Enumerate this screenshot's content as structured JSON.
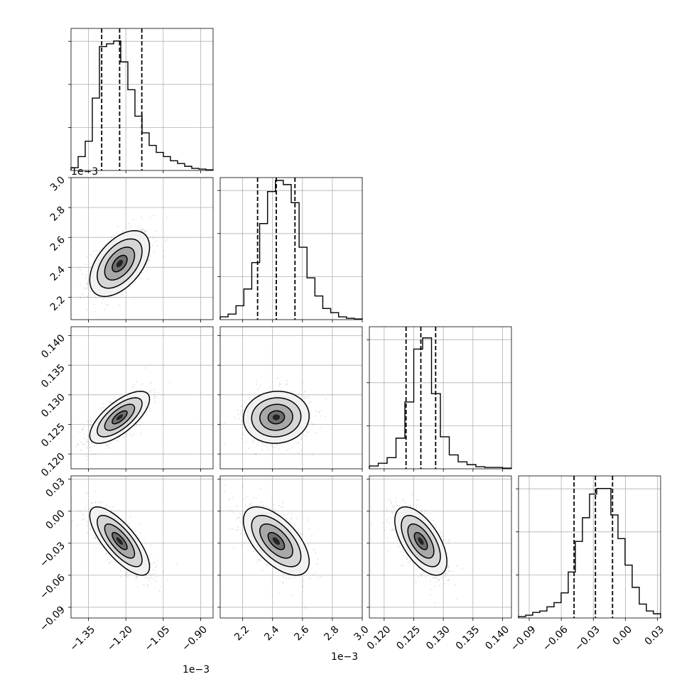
{
  "chart_data": {
    "type": "corner",
    "n_params": 4,
    "offset_texts": [
      "1e−3",
      "1e−3",
      "1e−3"
    ],
    "params": [
      {
        "range": [
          -1.42,
          -0.85
        ],
        "ticks": [
          -1.35,
          -1.2,
          -1.05,
          -0.9
        ],
        "tick_labels": [
          "−1.35",
          "−1.20",
          "−1.05",
          "−0.90"
        ],
        "quantiles": [
          -1.297,
          -1.225,
          -1.136
        ],
        "hist_rel_tops": [
          0.02,
          0.1,
          0.21,
          0.52,
          0.89,
          0.91,
          0.93,
          0.78,
          0.58,
          0.39,
          0.27,
          0.18,
          0.13,
          0.1,
          0.07,
          0.05,
          0.03,
          0.015,
          0.01,
          0.005
        ]
      },
      {
        "range": [
          2.05,
          3.0
        ],
        "ticks": [
          2.2,
          2.4,
          2.6,
          2.8,
          3.0
        ],
        "tick_labels": [
          "2.2",
          "2.4",
          "2.6",
          "2.8",
          "3.0"
        ],
        "quantiles": [
          2.3,
          2.425,
          2.55
        ],
        "hist_rel_tops": [
          0.02,
          0.04,
          0.1,
          0.22,
          0.41,
          0.69,
          0.92,
          1.0,
          0.97,
          0.84,
          0.52,
          0.3,
          0.17,
          0.08,
          0.05,
          0.02,
          0.01,
          0.005
        ]
      },
      {
        "range": [
          0.1175,
          0.1415
        ],
        "ticks": [
          0.12,
          0.125,
          0.13,
          0.135,
          0.14
        ],
        "tick_labels": [
          "0.120",
          "0.125",
          "0.130",
          "0.135",
          "0.140"
        ],
        "quantiles": [
          0.1237,
          0.1262,
          0.1287
        ],
        "hist_rel_tops": [
          0.02,
          0.04,
          0.08,
          0.22,
          0.48,
          0.86,
          0.94,
          0.54,
          0.23,
          0.1,
          0.05,
          0.03,
          0.015,
          0.01,
          0.01,
          0.005
        ]
      },
      {
        "range": [
          -0.1,
          0.033
        ],
        "ticks": [
          -0.09,
          -0.06,
          -0.03,
          0.0,
          0.03
        ],
        "tick_labels": [
          "−0.09",
          "−0.06",
          "−0.03",
          "0.00",
          "0.03"
        ],
        "quantiles": [
          -0.048,
          -0.028,
          -0.012
        ],
        "hist_rel_tops": [
          0.01,
          0.02,
          0.04,
          0.05,
          0.08,
          0.11,
          0.18,
          0.33,
          0.55,
          0.72,
          0.89,
          0.93,
          0.93,
          0.74,
          0.57,
          0.38,
          0.22,
          0.1,
          0.05,
          0.03
        ]
      }
    ],
    "pairs": [
      {
        "x": 0,
        "y": 1,
        "mean": [
          -1.225,
          2.425
        ],
        "sd": [
          0.06,
          0.11
        ],
        "corr": 0.5
      },
      {
        "x": 0,
        "y": 2,
        "mean": [
          -1.225,
          0.1262
        ],
        "sd": [
          0.06,
          0.0022
        ],
        "corr": 0.7
      },
      {
        "x": 1,
        "y": 2,
        "mean": [
          2.425,
          0.1262
        ],
        "sd": [
          0.11,
          0.0022
        ],
        "corr": 0.05
      },
      {
        "x": 0,
        "y": 3,
        "mean": [
          -1.225,
          -0.028
        ],
        "sd": [
          0.06,
          0.016
        ],
        "corr": -0.75
      },
      {
        "x": 1,
        "y": 3,
        "mean": [
          2.425,
          -0.028
        ],
        "sd": [
          0.11,
          0.016
        ],
        "corr": -0.6
      },
      {
        "x": 2,
        "y": 3,
        "mean": [
          0.1262,
          -0.028
        ],
        "sd": [
          0.0022,
          0.016
        ],
        "corr": -0.6
      }
    ],
    "contour_levels_sigma": [
      0.5,
      1.0,
      1.5,
      2.0
    ],
    "grid": true,
    "title": "",
    "xlabel": "",
    "ylabel": ""
  }
}
